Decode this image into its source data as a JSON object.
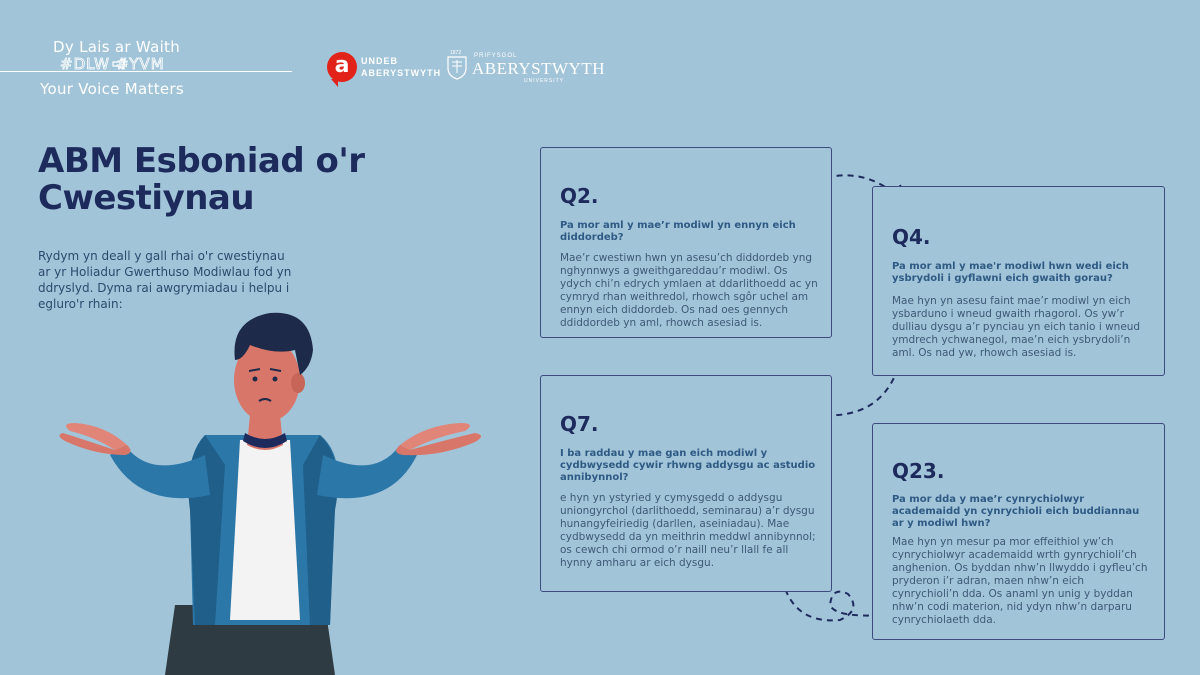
{
  "brand": {
    "line1": "Dy Lais ar Waith",
    "hashtags": "#DLW   #YVM",
    "line3": "Your Voice Matters"
  },
  "logos": {
    "undeb_letter": "a",
    "undeb_line1": "UNDEB",
    "undeb_line2": "ABERYSTWYTH",
    "prifysgol_year": "1872",
    "prifysgol_top": "PRIFYSGOL",
    "prifysgol_name": "ABERYSTWYTH",
    "prifysgol_bottom": "UNIVERSITY"
  },
  "title": "ABM Esboniad o'r Cwestiynau",
  "intro": "Rydym yn deall y gall rhai o'r cwestiynau ar yr Holiadur Gwerthuso Modiwlau fod yn ddryslyd. Dyma rai awgrymiadau i helpu i egluro'r rhain:",
  "cards": {
    "q2": {
      "label": "Q2.",
      "question": "Pa mor aml y mae’r modiwl yn ennyn eich diddordeb?",
      "body": "Mae’r cwestiwn hwn yn asesu’ch diddordeb yng nghynnwys a gweithgareddau’r modiwl. Os ydych chi’n edrych ymlaen at ddarlithoedd ac yn cymryd rhan weithredol, rhowch sgôr uchel am ennyn eich diddordeb. Os nad oes gennych ddiddordeb yn aml, rhowch asesiad is."
    },
    "q4": {
      "label": "Q4.",
      "question": "Pa mor aml y mae'r modiwl hwn wedi eich ysbrydoli i gyflawni eich gwaith gorau?",
      "body": "Mae hyn yn asesu faint mae’r modiwl yn eich ysbarduno i wneud gwaith rhagorol. Os yw’r dulliau dysgu a’r pynciau yn eich tanio i wneud ymdrech ychwanegol, mae’n eich ysbrydoli’n aml. Os nad yw, rhowch asesiad is."
    },
    "q7": {
      "label": "Q7.",
      "question": "I ba raddau y mae gan eich modiwl y cydbwysedd cywir rhwng addysgu ac astudio annibynnol?",
      "body": "e hyn yn ystyried y cymysgedd o addysgu uniongyrchol (darlithoedd, seminarau) a’r dysgu hunangyfeiriedig (darllen, aseiniadau). Mae cydbwysedd da yn meithrin meddwl annibynnol; os cewch chi ormod o’r naill neu’r llall fe all hynny amharu ar eich dysgu."
    },
    "q23": {
      "label": "Q23.",
      "question": "Pa mor dda y mae’r cynrychiolwyr academaidd yn cynrychioli eich buddiannau ar y modiwl hwn?",
      "body": "Mae hyn yn mesur pa mor effeithiol yw’ch cynrychiolwyr academaidd wrth gynrychioli’ch anghenion. Os byddan nhw’n llwyddo i gyfleu’ch pryderon i’r adran, maen nhw’n eich cynrychioli’n dda. Os anaml yn unig y byddan nhw’n codi materion, nid ydyn nhw’n darparu cynrychiolaeth dda."
    }
  },
  "colors": {
    "background": "#a2c4d8",
    "title": "#1d2a5c",
    "subtitle": "#2e5a84",
    "card_border": "#3d4b7c",
    "undeb_red": "#e2231a"
  }
}
